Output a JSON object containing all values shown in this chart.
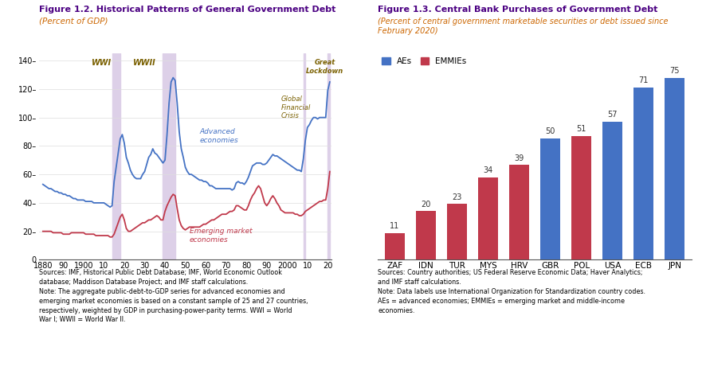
{
  "fig1_title": "Figure 1.2. Historical Patterns of General Government Debt",
  "fig1_subtitle": "(Percent of GDP)",
  "fig1_title_color": "#4B0082",
  "fig1_subtitle_color": "#CC6600",
  "fig2_title": "Figure 1.3. Central Bank Purchases of Government Debt",
  "fig2_subtitle": "(Percent of central government marketable securities or debt issued since\nFebruary 2020)",
  "fig2_title_color": "#4B0082",
  "fig2_subtitle_color": "#CC6600",
  "adv_color": "#4472C4",
  "emg_color": "#C0394B",
  "shade_color": "#DDD0E8",
  "ylim_line": [
    0,
    145
  ],
  "yticks_line": [
    0,
    20,
    40,
    60,
    80,
    100,
    120,
    140
  ],
  "xticks_line": [
    1880,
    1890,
    1900,
    1910,
    1920,
    1930,
    1940,
    1950,
    1960,
    1970,
    1980,
    1990,
    2000,
    2010,
    2020
  ],
  "xtick_labels_line": [
    "1880",
    "90",
    "1900",
    "10",
    "20",
    "30",
    "40",
    "50",
    "60",
    "70",
    "80",
    "90",
    "2000",
    "10",
    "20"
  ],
  "fig1_note": "Sources: IMF, Historical Public Debt Database; IMF, World Economic Outlook\ndatabase; Maddison Database Project; and IMF staff calculations.\nNote: The aggregate public-debt-to-GDP series for advanced economies and\nemerging market economies is based on a constant sample of 25 and 27 countries,\nrespectively, weighted by GDP in purchasing-power-parity terms. WWI = World\nWar I; WWII = World War II.",
  "bar_categories": [
    "ZAF",
    "IDN",
    "TUR",
    "MYS",
    "HRV",
    "GBR",
    "POL",
    "USA",
    "ECB",
    "JPN"
  ],
  "bar_values": [
    11,
    20,
    23,
    34,
    39,
    50,
    51,
    57,
    71,
    75
  ],
  "bar_colors": [
    "#C0394B",
    "#C0394B",
    "#C0394B",
    "#C0394B",
    "#C0394B",
    "#4472C4",
    "#C0394B",
    "#4472C4",
    "#4472C4",
    "#4472C4"
  ],
  "ae_color": "#4472C4",
  "emmie_color": "#C0394B",
  "fig2_note": "Sources: Country authorities; US Federal Reserve Economic Data; Haver Analytics;\nand IMF staff calculations.\nNote: Data labels use International Organization for Standardization country codes.\nAEs = advanced economies; EMMIEs = emerging market and middle-income\neconomies.",
  "adv_data_x": [
    1880,
    1881,
    1882,
    1883,
    1884,
    1885,
    1886,
    1887,
    1888,
    1889,
    1890,
    1891,
    1892,
    1893,
    1894,
    1895,
    1896,
    1897,
    1898,
    1899,
    1900,
    1901,
    1902,
    1903,
    1904,
    1905,
    1906,
    1907,
    1908,
    1909,
    1910,
    1911,
    1912,
    1913,
    1914,
    1915,
    1916,
    1917,
    1918,
    1919,
    1920,
    1921,
    1922,
    1923,
    1924,
    1925,
    1926,
    1927,
    1928,
    1929,
    1930,
    1931,
    1932,
    1933,
    1934,
    1935,
    1936,
    1937,
    1938,
    1939,
    1940,
    1941,
    1942,
    1943,
    1944,
    1945,
    1946,
    1947,
    1948,
    1949,
    1950,
    1951,
    1952,
    1953,
    1954,
    1955,
    1956,
    1957,
    1958,
    1959,
    1960,
    1961,
    1962,
    1963,
    1964,
    1965,
    1966,
    1967,
    1968,
    1969,
    1970,
    1971,
    1972,
    1973,
    1974,
    1975,
    1976,
    1977,
    1978,
    1979,
    1980,
    1981,
    1982,
    1983,
    1984,
    1985,
    1986,
    1987,
    1988,
    1989,
    1990,
    1991,
    1992,
    1993,
    1994,
    1995,
    1996,
    1997,
    1998,
    1999,
    2000,
    2001,
    2002,
    2003,
    2004,
    2005,
    2006,
    2007,
    2008,
    2009,
    2010,
    2011,
    2012,
    2013,
    2014,
    2015,
    2016,
    2017,
    2018,
    2019,
    2020,
    2021
  ],
  "adv_data_y": [
    53,
    52,
    51,
    50,
    50,
    49,
    48,
    48,
    47,
    47,
    46,
    46,
    45,
    45,
    44,
    43,
    43,
    42,
    42,
    42,
    42,
    41,
    41,
    41,
    41,
    40,
    40,
    40,
    40,
    40,
    40,
    39,
    38,
    37,
    38,
    55,
    65,
    75,
    85,
    88,
    82,
    72,
    68,
    63,
    60,
    58,
    57,
    57,
    57,
    60,
    62,
    67,
    72,
    74,
    78,
    75,
    74,
    72,
    70,
    68,
    70,
    88,
    110,
    125,
    128,
    126,
    110,
    90,
    78,
    72,
    65,
    62,
    60,
    60,
    59,
    58,
    57,
    56,
    56,
    55,
    55,
    54,
    52,
    52,
    51,
    50,
    50,
    50,
    50,
    50,
    50,
    50,
    50,
    49,
    50,
    54,
    55,
    54,
    54,
    53,
    55,
    58,
    62,
    66,
    67,
    68,
    68,
    68,
    67,
    67,
    68,
    70,
    72,
    74,
    73,
    73,
    72,
    71,
    70,
    69,
    68,
    67,
    66,
    65,
    64,
    63,
    63,
    62,
    71,
    84,
    93,
    95,
    98,
    100,
    100,
    99,
    100,
    100,
    100,
    100,
    119,
    125
  ],
  "emg_data_x": [
    1880,
    1881,
    1882,
    1883,
    1884,
    1885,
    1886,
    1887,
    1888,
    1889,
    1890,
    1891,
    1892,
    1893,
    1894,
    1895,
    1896,
    1897,
    1898,
    1899,
    1900,
    1901,
    1902,
    1903,
    1904,
    1905,
    1906,
    1907,
    1908,
    1909,
    1910,
    1911,
    1912,
    1913,
    1914,
    1915,
    1916,
    1917,
    1918,
    1919,
    1920,
    1921,
    1922,
    1923,
    1924,
    1925,
    1926,
    1927,
    1928,
    1929,
    1930,
    1931,
    1932,
    1933,
    1934,
    1935,
    1936,
    1937,
    1938,
    1939,
    1940,
    1941,
    1942,
    1943,
    1944,
    1945,
    1946,
    1947,
    1948,
    1949,
    1950,
    1951,
    1952,
    1953,
    1954,
    1955,
    1956,
    1957,
    1958,
    1959,
    1960,
    1961,
    1962,
    1963,
    1964,
    1965,
    1966,
    1967,
    1968,
    1969,
    1970,
    1971,
    1972,
    1973,
    1974,
    1975,
    1976,
    1977,
    1978,
    1979,
    1980,
    1981,
    1982,
    1983,
    1984,
    1985,
    1986,
    1987,
    1988,
    1989,
    1990,
    1991,
    1992,
    1993,
    1994,
    1995,
    1996,
    1997,
    1998,
    1999,
    2000,
    2001,
    2002,
    2003,
    2004,
    2005,
    2006,
    2007,
    2008,
    2009,
    2010,
    2011,
    2012,
    2013,
    2014,
    2015,
    2016,
    2017,
    2018,
    2019,
    2020,
    2021
  ],
  "emg_data_y": [
    20,
    20,
    20,
    20,
    20,
    19,
    19,
    19,
    19,
    19,
    18,
    18,
    18,
    18,
    19,
    19,
    19,
    19,
    19,
    19,
    19,
    18,
    18,
    18,
    18,
    18,
    17,
    17,
    17,
    17,
    17,
    17,
    17,
    16,
    16,
    18,
    22,
    26,
    30,
    32,
    28,
    22,
    20,
    20,
    21,
    22,
    23,
    24,
    25,
    26,
    26,
    27,
    28,
    28,
    29,
    30,
    31,
    30,
    28,
    28,
    34,
    38,
    41,
    44,
    46,
    45,
    36,
    28,
    24,
    22,
    21,
    22,
    23,
    23,
    23,
    23,
    23,
    23,
    24,
    25,
    25,
    26,
    27,
    28,
    28,
    29,
    30,
    31,
    32,
    32,
    32,
    33,
    34,
    34,
    35,
    38,
    38,
    37,
    36,
    35,
    35,
    38,
    42,
    45,
    47,
    50,
    52,
    50,
    45,
    40,
    38,
    40,
    43,
    45,
    43,
    40,
    38,
    35,
    34,
    33,
    33,
    33,
    33,
    33,
    32,
    32,
    31,
    31,
    32,
    34,
    35,
    36,
    37,
    38,
    39,
    40,
    41,
    41,
    42,
    42,
    50,
    62
  ]
}
